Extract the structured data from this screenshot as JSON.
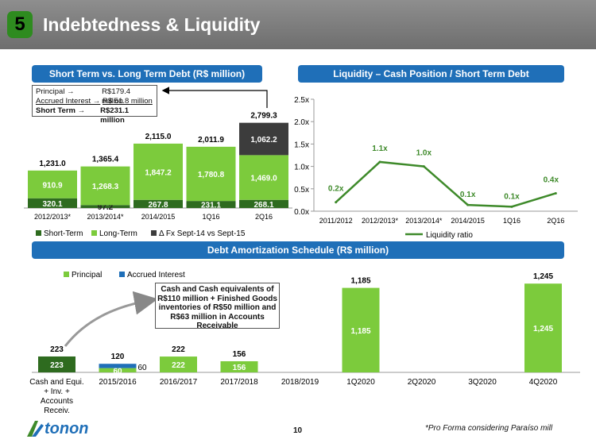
{
  "header": {
    "number": "5",
    "title": "Indebtedness & Liquidity"
  },
  "left_title": "Short Term vs. Long Term Debt (R$ million)",
  "right_title": "Liquidity – Cash Position / Short Term Debt",
  "bottom_title": "Debt Amortization Schedule (R$ million)",
  "info_box": {
    "principal_label": "Principal →",
    "principal_value": "R$179.4 million",
    "accrued_label": "Accrued Interest →",
    "accrued_value": "R$  51.8 million",
    "short_label": "Short Term →",
    "short_value": "R$231.1 million"
  },
  "callout": "Cash and Cash equivalents of R$110 million + Finished Goods inventories of R$50 million and R$63 million in Accounts Receivable",
  "footer": {
    "page": "10",
    "note": "*Pro Forma considering Paraíso mill",
    "logo_text": "tonon"
  },
  "colors": {
    "dark_green": "#2e6b1f",
    "light_green": "#7ccb3c",
    "dark_gray": "#3c3c3c",
    "blue": "#1f6fb8",
    "line_green": "#3e8a2a"
  },
  "chart_data": [
    {
      "type": "bar",
      "title": "Short Term vs. Long Term Debt (R$ million)",
      "stacked": true,
      "categories": [
        "2012/2013*",
        "2013/2014*",
        "2014/2015",
        "1Q16",
        "2Q16"
      ],
      "series": [
        {
          "name": "Short-Term",
          "values": [
            320.1,
            97.2,
            267.8,
            231.1,
            268.1
          ]
        },
        {
          "name": "Long-Term",
          "values": [
            910.9,
            1268.3,
            1847.2,
            1780.8,
            1469.0
          ]
        },
        {
          "name": "Δ Fx Sept-14 vs Sept-15",
          "values": [
            0,
            0,
            0,
            0,
            1062.2
          ]
        }
      ],
      "totals": [
        "1,231.0",
        "1,365.4",
        "2,115.0",
        "2,011.9",
        "2,799.3"
      ],
      "value_labels": {
        "Short-Term": [
          "320.1",
          "97.2",
          "267.8",
          "231.1",
          "268.1"
        ],
        "Long-Term": [
          "910.9",
          "1,268.3",
          "1,847.2",
          "1,780.8",
          "1,469.0"
        ],
        "Δ Fx Sept-14 vs Sept-15": [
          "",
          "",
          "",
          "",
          "1,062.2"
        ]
      },
      "legend_position": "bottom"
    },
    {
      "type": "line",
      "title": "Liquidity – Cash Position / Short Term Debt",
      "x": [
        "2011/2012",
        "2012/2013*",
        "2013/2014*",
        "2014/2015",
        "1Q16",
        "2Q16"
      ],
      "series": [
        {
          "name": "Liquidity ratio",
          "values": [
            0.2,
            1.1,
            1.0,
            0.14,
            0.1,
            0.4
          ]
        }
      ],
      "point_labels": [
        "0.2x",
        "1.1x",
        "1.0x",
        "0.1x",
        "0.1x",
        "0.4x"
      ],
      "ylim": [
        0,
        2.5
      ],
      "y_ticks": [
        "0.0x",
        "0.5x",
        "1.0x",
        "1.5x",
        "2.0x",
        "2.5x"
      ],
      "grid": false,
      "legend_position": "bottom"
    },
    {
      "type": "bar",
      "title": "Debt Amortization Schedule (R$ million)",
      "stacked": true,
      "categories": [
        "Cash and Equi. + Inv. + Accounts Receiv.",
        "2015/2016",
        "2016/2017",
        "2017/2018",
        "2018/2019",
        "1Q2020",
        "2Q2020",
        "3Q2020",
        "4Q2020"
      ],
      "category_lines": [
        [
          "Cash and Equi.",
          "+ Inv. +",
          "Accounts",
          "Receiv."
        ],
        [
          "2015/2016"
        ],
        [
          "2016/2017"
        ],
        [
          "2017/2018"
        ],
        [
          "2018/2019"
        ],
        [
          "1Q2020"
        ],
        [
          "2Q2020"
        ],
        [
          "3Q2020"
        ],
        [
          "4Q2020"
        ]
      ],
      "series": [
        {
          "name": "Principal",
          "values": [
            223,
            60,
            222,
            156,
            0,
            1185,
            0,
            0,
            1245
          ]
        },
        {
          "name": "Accrued Interest",
          "values": [
            0,
            60,
            0,
            0,
            0,
            0,
            0,
            0,
            0
          ]
        }
      ],
      "totals": [
        "223",
        "120",
        "222",
        "156",
        "",
        "1,185",
        "",
        "",
        "1,245"
      ],
      "inner_labels": [
        "223",
        "60",
        "222",
        "156",
        "",
        "1,185",
        "",
        "",
        "1,245"
      ],
      "side_labels": [
        "",
        "60",
        "",
        "",
        "",
        "",
        "",
        "",
        ""
      ],
      "legend_position": "top-left"
    }
  ]
}
